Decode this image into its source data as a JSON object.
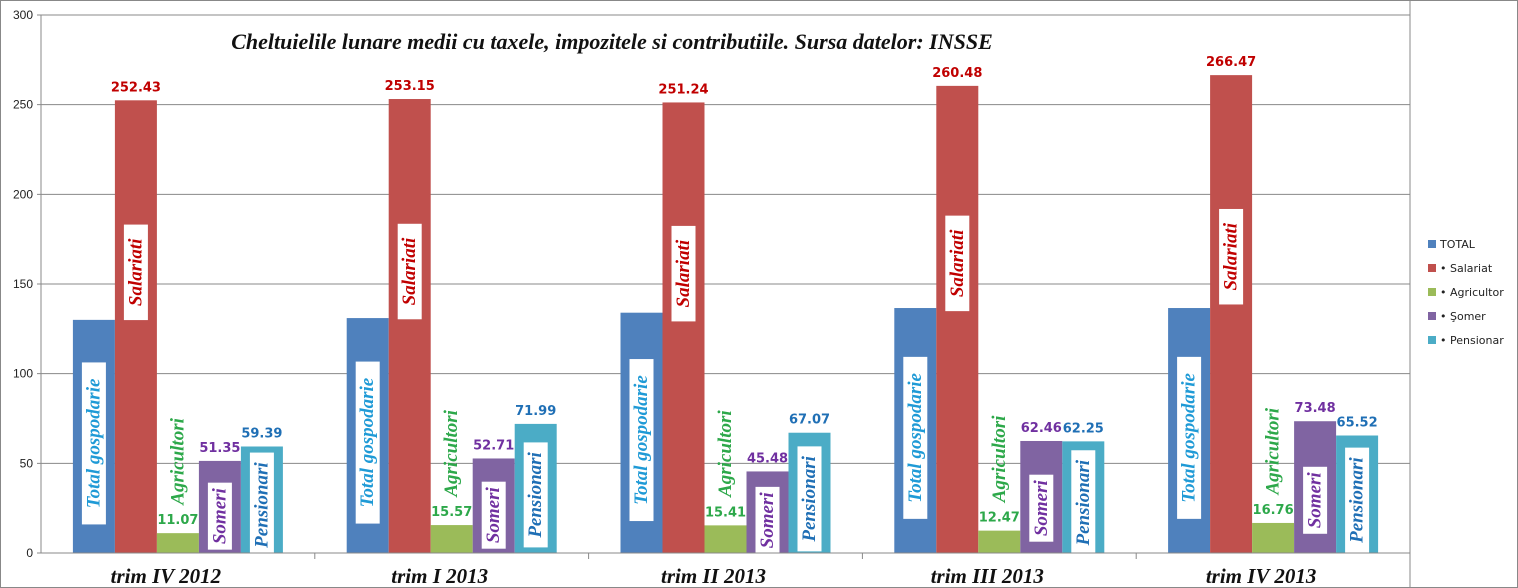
{
  "chart_data": {
    "type": "bar",
    "title": "Cheltuielile lunare medii cu taxele, impozitele si contributiile. Sursa datelor: INSSE",
    "categories": [
      "trim IV 2012",
      "trim I 2013",
      "trim II 2013",
      "trim III 2013",
      "trim IV 2013"
    ],
    "ylim": [
      0,
      300
    ],
    "yticks": [
      0,
      50,
      100,
      150,
      200,
      250,
      300
    ],
    "grid": true,
    "legend_position": "right",
    "series": [
      {
        "name": "TOTAL",
        "color": "#4F81BD",
        "label_color": "#1F9AD6",
        "inner_label": "Total gospodarie",
        "show_values": false,
        "values": [
          130,
          131,
          134,
          136.6,
          136.6
        ]
      },
      {
        "name": "• Salariat",
        "color": "#C0504D",
        "label_color": "#C00000",
        "inner_label": "Salariati",
        "show_values": true,
        "values": [
          252.43,
          253.15,
          251.24,
          260.48,
          266.47
        ]
      },
      {
        "name": "• Agricultor",
        "color": "#9BBB59",
        "label_color": "#2DA84A",
        "inner_label": "Agricultori",
        "show_values": true,
        "values": [
          11.07,
          15.57,
          15.41,
          12.47,
          16.76
        ]
      },
      {
        "name": "• Şomer",
        "color": "#8064A2",
        "label_color": "#7030A0",
        "inner_label": "Someri",
        "show_values": true,
        "values": [
          51.35,
          52.71,
          45.48,
          62.46,
          73.48
        ]
      },
      {
        "name": "• Pensionar",
        "color": "#4BACC6",
        "label_color": "#1F6FB5",
        "inner_label": "Pensionari",
        "show_values": true,
        "values": [
          59.39,
          71.99,
          67.07,
          62.25,
          65.52
        ]
      }
    ]
  }
}
